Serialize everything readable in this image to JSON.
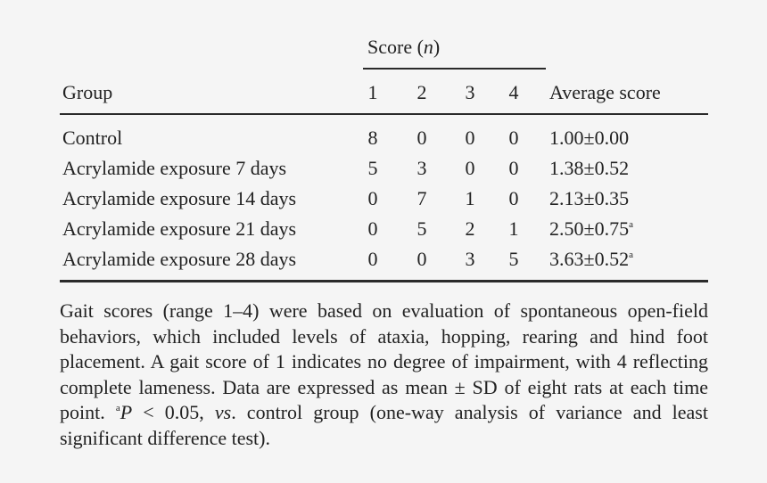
{
  "table": {
    "spanner": "Score (",
    "spanner_n": "n",
    "spanner_close": ")",
    "headers": [
      "Group",
      "1",
      "2",
      "3",
      "4",
      "Average score"
    ],
    "rows": [
      {
        "group": "Control",
        "s1": "8",
        "s2": "0",
        "s3": "0",
        "s4": "0",
        "avg": "1.00±0.00",
        "sup": ""
      },
      {
        "group": "Acrylamide exposure 7 days",
        "s1": "5",
        "s2": "3",
        "s3": "0",
        "s4": "0",
        "avg": "1.38±0.52",
        "sup": ""
      },
      {
        "group": "Acrylamide exposure 14 days",
        "s1": "0",
        "s2": "7",
        "s3": "1",
        "s4": "0",
        "avg": "2.13±0.35",
        "sup": ""
      },
      {
        "group": "Acrylamide exposure 21 days",
        "s1": "0",
        "s2": "5",
        "s3": "2",
        "s4": "1",
        "avg": "2.50±0.75",
        "sup": "a"
      },
      {
        "group": "Acrylamide exposure 28 days",
        "s1": "0",
        "s2": "0",
        "s3": "3",
        "s4": "5",
        "avg": "3.63±0.52",
        "sup": "a"
      }
    ]
  },
  "footnote": {
    "part1": "Gait scores (range 1–4) were based on evaluation of spontaneous open-field behaviors, which included levels of ataxia, hopping, rearing and hind foot placement. A gait score of 1 indicates no degree of impairment, with 4 reflecting complete lameness. Data are expressed as mean ± SD of eight rats at each time point. ",
    "sup": "a",
    "p": "P",
    "part2": " < 0.05, ",
    "vs": "vs",
    "part3": ". control group (one-way analysis of variance and least significant difference test)."
  }
}
